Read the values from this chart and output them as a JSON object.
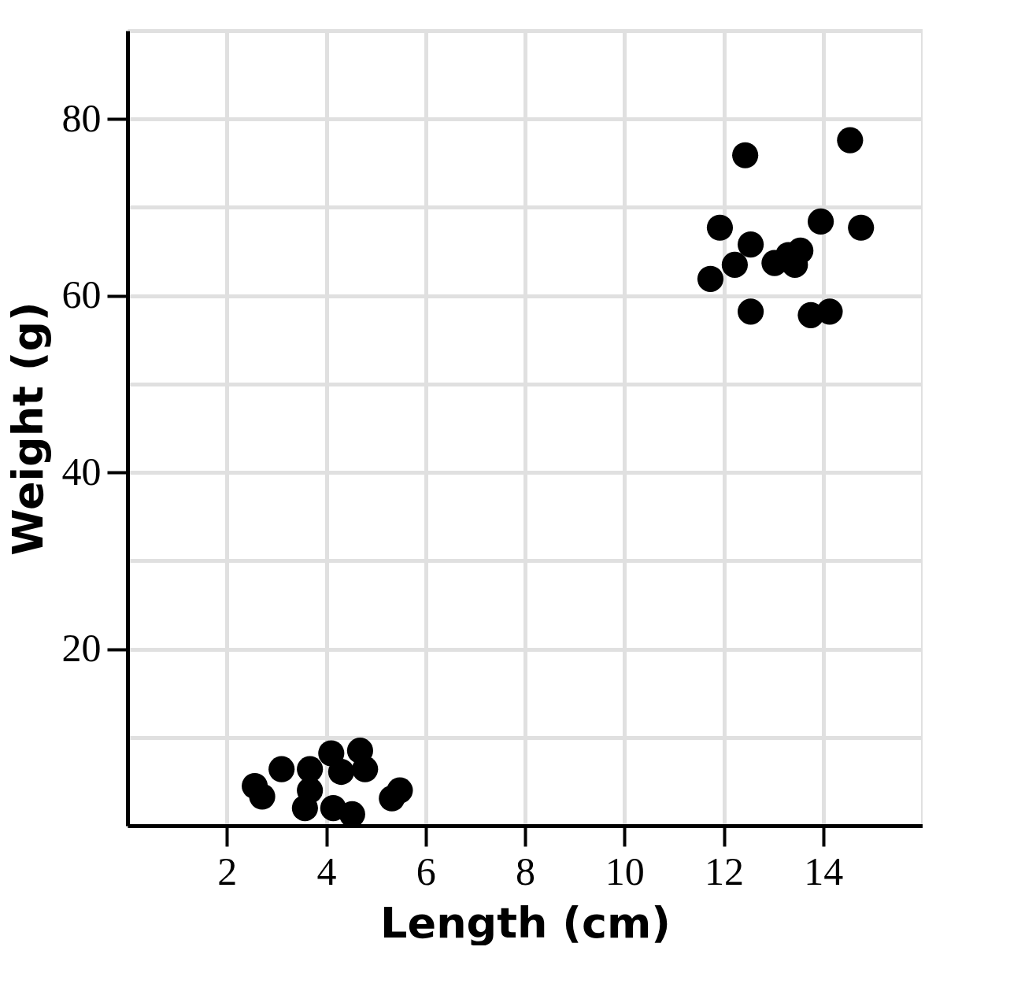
{
  "chart_data": {
    "type": "scatter",
    "xlabel": "Length (cm)",
    "ylabel": "Weight (g)",
    "x": [
      12.43,
      14.54,
      11.92,
      13.95,
      14.76,
      12.54,
      12.22,
      11.73,
      13.02,
      13.54,
      13.3,
      12.54,
      13.75,
      14.13,
      2.56,
      2.71,
      3.1,
      3.67,
      4.1,
      4.68,
      4.78,
      4.3,
      3.67,
      3.57,
      4.14,
      4.52,
      5.32,
      5.48,
      13.43
    ],
    "values": [
      75.9,
      77.6,
      67.7,
      68.4,
      67.7,
      65.8,
      63.5,
      61.9,
      63.7,
      65.1,
      64.6,
      58.2,
      57.8,
      58.2,
      4.5,
      3.3,
      6.4,
      6.4,
      8.2,
      8.5,
      6.4,
      6.1,
      4.0,
      2.0,
      2.0,
      1.3,
      3.1,
      4.0,
      63.5
    ],
    "color": "#000000",
    "marker": "circle",
    "grid": true,
    "xlim": [
      0,
      16
    ],
    "xticks": [
      2,
      4,
      6,
      8,
      10,
      12,
      14,
      {
        "value": 16,
        "label": null
      }
    ],
    "ylim": [
      0,
      90
    ],
    "yticks": [
      {
        "value": 10,
        "label": null
      },
      20,
      {
        "value": 30,
        "label": null
      },
      40,
      {
        "value": 50,
        "label": null
      },
      60,
      {
        "value": 70,
        "label": null
      },
      80,
      {
        "value": 90,
        "label": null
      }
    ]
  }
}
